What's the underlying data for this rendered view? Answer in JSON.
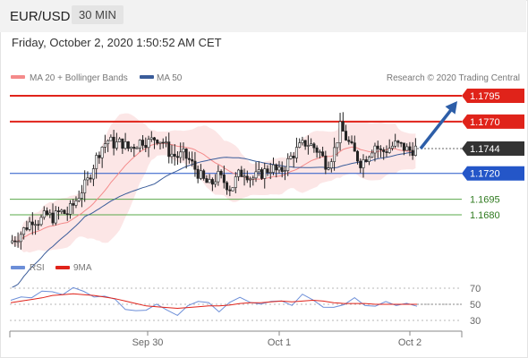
{
  "header": {
    "symbol": "EUR/USD",
    "timeframe": "30 MIN",
    "datetime": "Friday, October 2, 2020 1:50:52 AM CET",
    "copyright": "Research © 2020 Trading Central"
  },
  "colors": {
    "resistance": "#e0231a",
    "support": "#2456c8",
    "ma20": "#f48a8a",
    "ma50": "#3a5c9a",
    "price_tag": "#333333",
    "green_level": "#5aa84a",
    "rsi": "#6c8ed8",
    "rsi_ma": "#e0231a",
    "arrow": "#2d5ea8"
  },
  "chart_data": [
    {
      "type": "candlestick",
      "title": "EUR/USD",
      "timeframe": "30 MIN",
      "legend": [
        {
          "name": "MA 20 + Bollinger Bands",
          "color": "#f48a8a"
        },
        {
          "name": "MA 50",
          "color": "#3a5c9a"
        }
      ],
      "x_ticks": [
        "Sep 30",
        "Oct 1",
        "Oct 2"
      ],
      "ylim": [
        1.164,
        1.181
      ],
      "current_price": 1.1744,
      "levels": [
        {
          "label": "1.1795",
          "value": 1.1795,
          "style": "resistance"
        },
        {
          "label": "1.1770",
          "value": 1.177,
          "style": "resistance"
        },
        {
          "label": "1.1744",
          "value": 1.1744,
          "style": "current"
        },
        {
          "label": "1.1720",
          "value": 1.172,
          "style": "support"
        },
        {
          "label": "1.1695",
          "value": 1.1695,
          "style": "green"
        },
        {
          "label": "1.1680",
          "value": 1.168,
          "style": "green"
        }
      ],
      "forecast_arrow": {
        "from": 1.1744,
        "to": 1.1795
      },
      "close_path": [
        1.1655,
        1.166,
        1.1668,
        1.1676,
        1.1674,
        1.168,
        1.1677,
        1.1683,
        1.1681,
        1.169,
        1.1702,
        1.1712,
        1.173,
        1.1745,
        1.1752,
        1.1748,
        1.175,
        1.1744,
        1.1748,
        1.1752,
        1.175,
        1.1755,
        1.1751,
        1.174,
        1.1736,
        1.1738,
        1.1732,
        1.1722,
        1.1713,
        1.1708,
        1.1718,
        1.1712,
        1.1705,
        1.1718,
        1.1722,
        1.1715,
        1.1718,
        1.1722,
        1.1726,
        1.172,
        1.1728,
        1.1738,
        1.1745,
        1.175,
        1.1746,
        1.174,
        1.1728,
        1.174,
        1.1765,
        1.1752,
        1.174,
        1.173,
        1.1738,
        1.1748,
        1.174,
        1.1744,
        1.1748,
        1.1746,
        1.1742,
        1.1744
      ]
    },
    {
      "type": "line",
      "series": [
        {
          "name": "RSI",
          "color": "#6c8ed8",
          "values": [
            55,
            58,
            60,
            64,
            68,
            60,
            72,
            66,
            58,
            62,
            54,
            46,
            40,
            44,
            50,
            42,
            38,
            46,
            56,
            50,
            42,
            52,
            58,
            54,
            48,
            56,
            52,
            50,
            62,
            55,
            48,
            44,
            52,
            56,
            50,
            47,
            53,
            50,
            49,
            50
          ]
        },
        {
          "name": "9MA",
          "color": "#e0231a",
          "values": [
            52,
            54,
            56,
            58,
            61,
            62,
            63,
            62,
            61,
            59,
            57,
            54,
            51,
            48,
            47,
            46,
            45,
            46,
            47,
            48,
            48,
            49,
            51,
            52,
            52,
            53,
            54,
            53,
            54,
            55,
            54,
            52,
            51,
            51,
            51,
            50,
            50,
            50,
            50,
            50
          ]
        }
      ],
      "yticks": [
        70,
        50,
        30
      ],
      "ylim": [
        20,
        80
      ]
    }
  ]
}
